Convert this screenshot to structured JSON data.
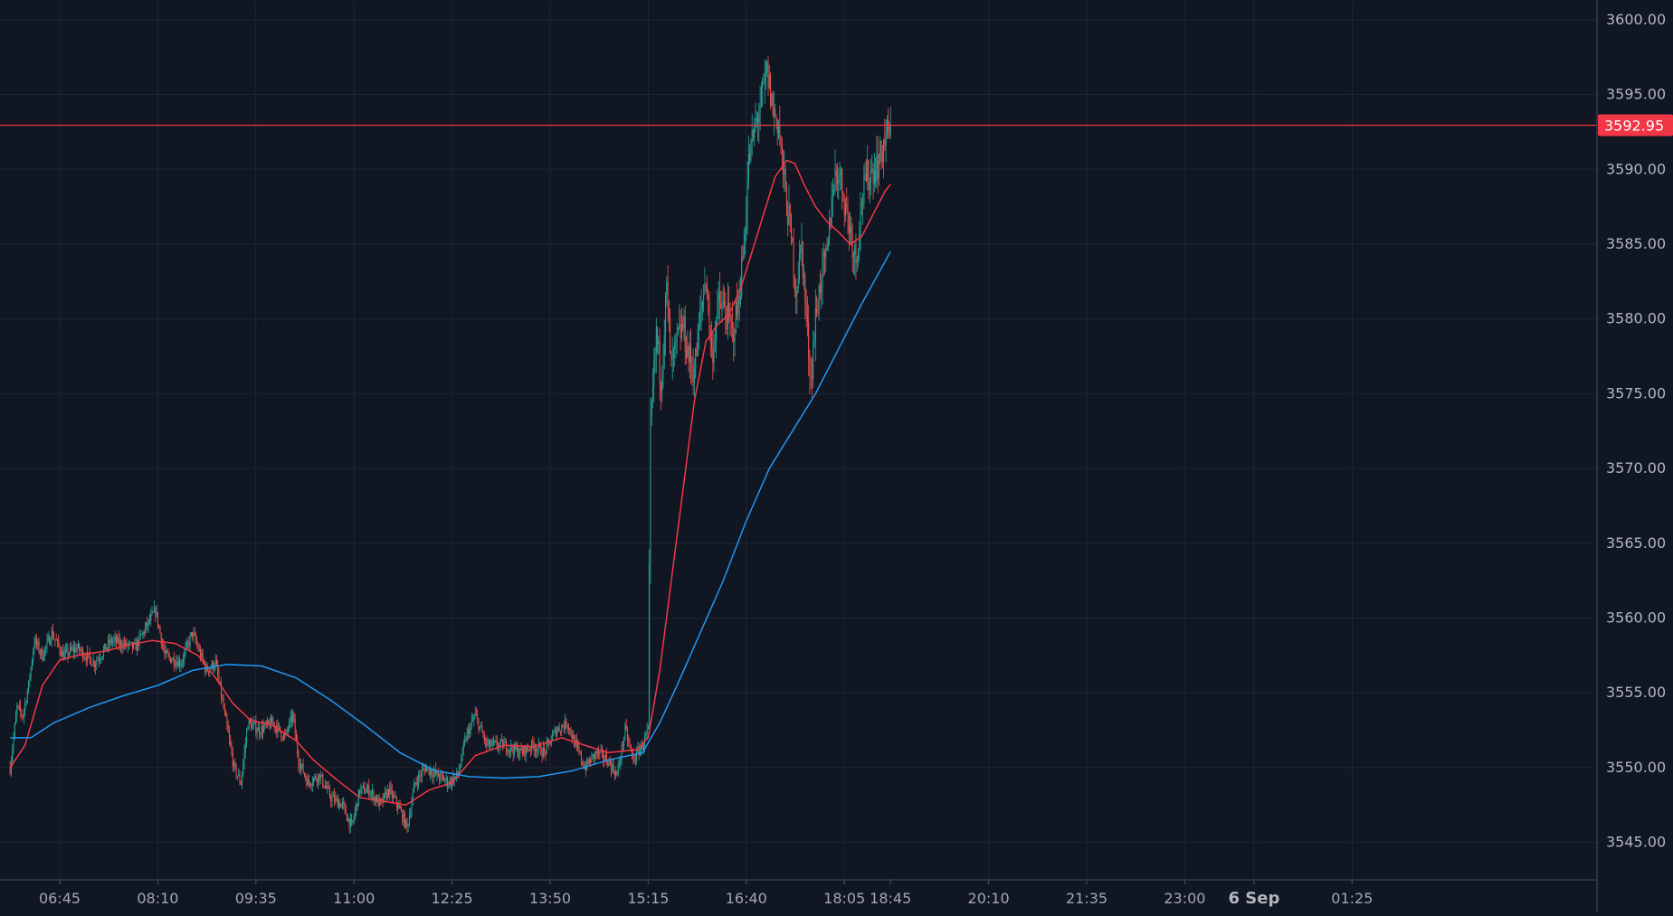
{
  "chart_data": {
    "type": "candlestick",
    "grid": true,
    "y_axis": {
      "min": 3542.5,
      "max": 3601.2,
      "ticks": [
        "3600.00",
        "3595.00",
        "3590.00",
        "3585.00",
        "3580.00",
        "3575.00",
        "3570.00",
        "3565.00",
        "3560.00",
        "3555.00",
        "3550.00",
        "3545.00"
      ]
    },
    "x_axis": {
      "ticks": [
        {
          "label": "06:45",
          "minutes": 405
        },
        {
          "label": "08:10",
          "minutes": 490
        },
        {
          "label": "09:35",
          "minutes": 575
        },
        {
          "label": "11:00",
          "minutes": 660
        },
        {
          "label": "12:25",
          "minutes": 745
        },
        {
          "label": "13:50",
          "minutes": 830
        },
        {
          "label": "15:15",
          "minutes": 915
        },
        {
          "label": "16:40",
          "minutes": 1000
        },
        {
          "label": "18:05",
          "minutes": 1085
        },
        {
          "label": "18:45",
          "minutes": 1125
        },
        {
          "label": "20:10",
          "minutes": 1210
        },
        {
          "label": "21:35",
          "minutes": 1295
        },
        {
          "label": "23:00",
          "minutes": 1380
        },
        {
          "label": "6 Sep",
          "minutes": 1440
        },
        {
          "label": "01:25",
          "minutes": 1525
        }
      ],
      "highlight_tick": "18:45",
      "bold_tick": "6 Sep"
    },
    "last_price": {
      "value": 3592.95,
      "label": "3592.95",
      "color": "#f23645"
    },
    "candle_colors": {
      "up": "#26a69a",
      "down": "#ef5350"
    },
    "price_path": [
      {
        "t": 362,
        "p": 3550.0
      },
      {
        "t": 368,
        "p": 3554.0
      },
      {
        "t": 373,
        "p": 3553.5
      },
      {
        "t": 378,
        "p": 3555.5
      },
      {
        "t": 383,
        "p": 3558.5
      },
      {
        "t": 390,
        "p": 3557.5
      },
      {
        "t": 398,
        "p": 3559.0
      },
      {
        "t": 408,
        "p": 3557.5
      },
      {
        "t": 420,
        "p": 3558.0
      },
      {
        "t": 435,
        "p": 3557.0
      },
      {
        "t": 450,
        "p": 3558.5
      },
      {
        "t": 470,
        "p": 3558.0
      },
      {
        "t": 488,
        "p": 3560.5
      },
      {
        "t": 496,
        "p": 3557.5
      },
      {
        "t": 510,
        "p": 3557.0
      },
      {
        "t": 520,
        "p": 3559.0
      },
      {
        "t": 532,
        "p": 3556.5
      },
      {
        "t": 540,
        "p": 3557.0
      },
      {
        "t": 548,
        "p": 3553.5
      },
      {
        "t": 556,
        "p": 3550.0
      },
      {
        "t": 562,
        "p": 3549.0
      },
      {
        "t": 568,
        "p": 3553.0
      },
      {
        "t": 578,
        "p": 3552.5
      },
      {
        "t": 590,
        "p": 3553.0
      },
      {
        "t": 600,
        "p": 3552.0
      },
      {
        "t": 607,
        "p": 3553.5
      },
      {
        "t": 612,
        "p": 3550.5
      },
      {
        "t": 620,
        "p": 3549.0
      },
      {
        "t": 630,
        "p": 3549.5
      },
      {
        "t": 640,
        "p": 3548.0
      },
      {
        "t": 650,
        "p": 3547.5
      },
      {
        "t": 658,
        "p": 3546.0
      },
      {
        "t": 665,
        "p": 3548.5
      },
      {
        "t": 673,
        "p": 3548.5
      },
      {
        "t": 683,
        "p": 3547.5
      },
      {
        "t": 690,
        "p": 3548.5
      },
      {
        "t": 698,
        "p": 3547.5
      },
      {
        "t": 706,
        "p": 3546.0
      },
      {
        "t": 713,
        "p": 3549.0
      },
      {
        "t": 722,
        "p": 3550.0
      },
      {
        "t": 732,
        "p": 3549.5
      },
      {
        "t": 742,
        "p": 3549.0
      },
      {
        "t": 750,
        "p": 3549.5
      },
      {
        "t": 757,
        "p": 3552.0
      },
      {
        "t": 765,
        "p": 3553.5
      },
      {
        "t": 775,
        "p": 3551.5
      },
      {
        "t": 790,
        "p": 3551.5
      },
      {
        "t": 805,
        "p": 3551.0
      },
      {
        "t": 815,
        "p": 3551.5
      },
      {
        "t": 825,
        "p": 3551.0
      },
      {
        "t": 835,
        "p": 3552.5
      },
      {
        "t": 845,
        "p": 3553.0
      },
      {
        "t": 852,
        "p": 3551.5
      },
      {
        "t": 860,
        "p": 3550.0
      },
      {
        "t": 870,
        "p": 3551.0
      },
      {
        "t": 880,
        "p": 3550.5
      },
      {
        "t": 888,
        "p": 3549.5
      },
      {
        "t": 895,
        "p": 3552.5
      },
      {
        "t": 902,
        "p": 3550.5
      },
      {
        "t": 910,
        "p": 3551.5
      },
      {
        "t": 915,
        "p": 3552.5
      },
      {
        "t": 917,
        "p": 3572.5
      },
      {
        "t": 922,
        "p": 3579.0
      },
      {
        "t": 926,
        "p": 3576.0
      },
      {
        "t": 931,
        "p": 3582.0
      },
      {
        "t": 935,
        "p": 3576.5
      },
      {
        "t": 940,
        "p": 3578.5
      },
      {
        "t": 945,
        "p": 3579.5
      },
      {
        "t": 950,
        "p": 3577.5
      },
      {
        "t": 955,
        "p": 3576.5
      },
      {
        "t": 960,
        "p": 3580.0
      },
      {
        "t": 965,
        "p": 3583.0
      },
      {
        "t": 970,
        "p": 3577.5
      },
      {
        "t": 976,
        "p": 3581.0
      },
      {
        "t": 982,
        "p": 3580.5
      },
      {
        "t": 988,
        "p": 3579.0
      },
      {
        "t": 993,
        "p": 3581.0
      },
      {
        "t": 998,
        "p": 3585.0
      },
      {
        "t": 1002,
        "p": 3590.5
      },
      {
        "t": 1008,
        "p": 3593.0
      },
      {
        "t": 1013,
        "p": 3594.5
      },
      {
        "t": 1018,
        "p": 3596.5
      },
      {
        "t": 1023,
        "p": 3594.0
      },
      {
        "t": 1028,
        "p": 3593.0
      },
      {
        "t": 1033,
        "p": 3589.0
      },
      {
        "t": 1038,
        "p": 3586.0
      },
      {
        "t": 1043,
        "p": 3582.0
      },
      {
        "t": 1048,
        "p": 3585.0
      },
      {
        "t": 1052,
        "p": 3580.0
      },
      {
        "t": 1056,
        "p": 3576.0
      },
      {
        "t": 1060,
        "p": 3580.0
      },
      {
        "t": 1065,
        "p": 3583.0
      },
      {
        "t": 1070,
        "p": 3584.0
      },
      {
        "t": 1075,
        "p": 3589.0
      },
      {
        "t": 1080,
        "p": 3590.0
      },
      {
        "t": 1085,
        "p": 3588.0
      },
      {
        "t": 1090,
        "p": 3586.0
      },
      {
        "t": 1095,
        "p": 3584.0
      },
      {
        "t": 1100,
        "p": 3588.0
      },
      {
        "t": 1105,
        "p": 3589.5
      },
      {
        "t": 1110,
        "p": 3590.0
      },
      {
        "t": 1115,
        "p": 3590.5
      },
      {
        "t": 1120,
        "p": 3592.0
      },
      {
        "t": 1125,
        "p": 3592.95
      }
    ],
    "series": [
      {
        "color": "#f23645",
        "values": [
          {
            "t": 362,
            "p": 3550.0
          },
          {
            "t": 375,
            "p": 3551.5
          },
          {
            "t": 390,
            "p": 3555.5
          },
          {
            "t": 405,
            "p": 3557.2
          },
          {
            "t": 420,
            "p": 3557.5
          },
          {
            "t": 445,
            "p": 3557.8
          },
          {
            "t": 465,
            "p": 3558.2
          },
          {
            "t": 485,
            "p": 3558.5
          },
          {
            "t": 505,
            "p": 3558.3
          },
          {
            "t": 525,
            "p": 3557.5
          },
          {
            "t": 540,
            "p": 3556.0
          },
          {
            "t": 555,
            "p": 3554.3
          },
          {
            "t": 570,
            "p": 3553.2
          },
          {
            "t": 590,
            "p": 3552.8
          },
          {
            "t": 610,
            "p": 3551.8
          },
          {
            "t": 625,
            "p": 3550.5
          },
          {
            "t": 645,
            "p": 3549.2
          },
          {
            "t": 665,
            "p": 3548.0
          },
          {
            "t": 690,
            "p": 3547.7
          },
          {
            "t": 705,
            "p": 3547.5
          },
          {
            "t": 725,
            "p": 3548.5
          },
          {
            "t": 745,
            "p": 3549.0
          },
          {
            "t": 765,
            "p": 3550.8
          },
          {
            "t": 790,
            "p": 3551.5
          },
          {
            "t": 815,
            "p": 3551.4
          },
          {
            "t": 840,
            "p": 3552.0
          },
          {
            "t": 860,
            "p": 3551.5
          },
          {
            "t": 880,
            "p": 3551.0
          },
          {
            "t": 905,
            "p": 3551.2
          },
          {
            "t": 915,
            "p": 3552.0
          },
          {
            "t": 925,
            "p": 3556.5
          },
          {
            "t": 935,
            "p": 3562.5
          },
          {
            "t": 945,
            "p": 3568.5
          },
          {
            "t": 955,
            "p": 3574.5
          },
          {
            "t": 965,
            "p": 3578.5
          },
          {
            "t": 975,
            "p": 3579.6
          },
          {
            "t": 985,
            "p": 3580.3
          },
          {
            "t": 995,
            "p": 3582.0
          },
          {
            "t": 1005,
            "p": 3584.5
          },
          {
            "t": 1015,
            "p": 3587.0
          },
          {
            "t": 1025,
            "p": 3589.5
          },
          {
            "t": 1035,
            "p": 3590.6
          },
          {
            "t": 1042,
            "p": 3590.4
          },
          {
            "t": 1050,
            "p": 3589.0
          },
          {
            "t": 1060,
            "p": 3587.5
          },
          {
            "t": 1070,
            "p": 3586.5
          },
          {
            "t": 1080,
            "p": 3585.8
          },
          {
            "t": 1090,
            "p": 3585.0
          },
          {
            "t": 1100,
            "p": 3585.5
          },
          {
            "t": 1110,
            "p": 3587.0
          },
          {
            "t": 1120,
            "p": 3588.5
          },
          {
            "t": 1125,
            "p": 3589.0
          }
        ]
      },
      {
        "color": "#2196f3",
        "values": [
          {
            "t": 362,
            "p": 3552.0
          },
          {
            "t": 380,
            "p": 3552.0
          },
          {
            "t": 400,
            "p": 3553.0
          },
          {
            "t": 430,
            "p": 3554.0
          },
          {
            "t": 460,
            "p": 3554.8
          },
          {
            "t": 490,
            "p": 3555.5
          },
          {
            "t": 520,
            "p": 3556.5
          },
          {
            "t": 550,
            "p": 3556.9
          },
          {
            "t": 580,
            "p": 3556.8
          },
          {
            "t": 610,
            "p": 3556.0
          },
          {
            "t": 640,
            "p": 3554.5
          },
          {
            "t": 670,
            "p": 3552.8
          },
          {
            "t": 700,
            "p": 3551.0
          },
          {
            "t": 730,
            "p": 3549.8
          },
          {
            "t": 760,
            "p": 3549.4
          },
          {
            "t": 790,
            "p": 3549.3
          },
          {
            "t": 820,
            "p": 3549.4
          },
          {
            "t": 850,
            "p": 3549.8
          },
          {
            "t": 880,
            "p": 3550.5
          },
          {
            "t": 910,
            "p": 3551.0
          },
          {
            "t": 925,
            "p": 3553.0
          },
          {
            "t": 940,
            "p": 3555.5
          },
          {
            "t": 960,
            "p": 3559.0
          },
          {
            "t": 980,
            "p": 3562.5
          },
          {
            "t": 1000,
            "p": 3566.5
          },
          {
            "t": 1020,
            "p": 3570.0
          },
          {
            "t": 1040,
            "p": 3572.5
          },
          {
            "t": 1060,
            "p": 3575.0
          },
          {
            "t": 1080,
            "p": 3578.0
          },
          {
            "t": 1100,
            "p": 3581.0
          },
          {
            "t": 1125,
            "p": 3584.5
          }
        ]
      }
    ]
  }
}
